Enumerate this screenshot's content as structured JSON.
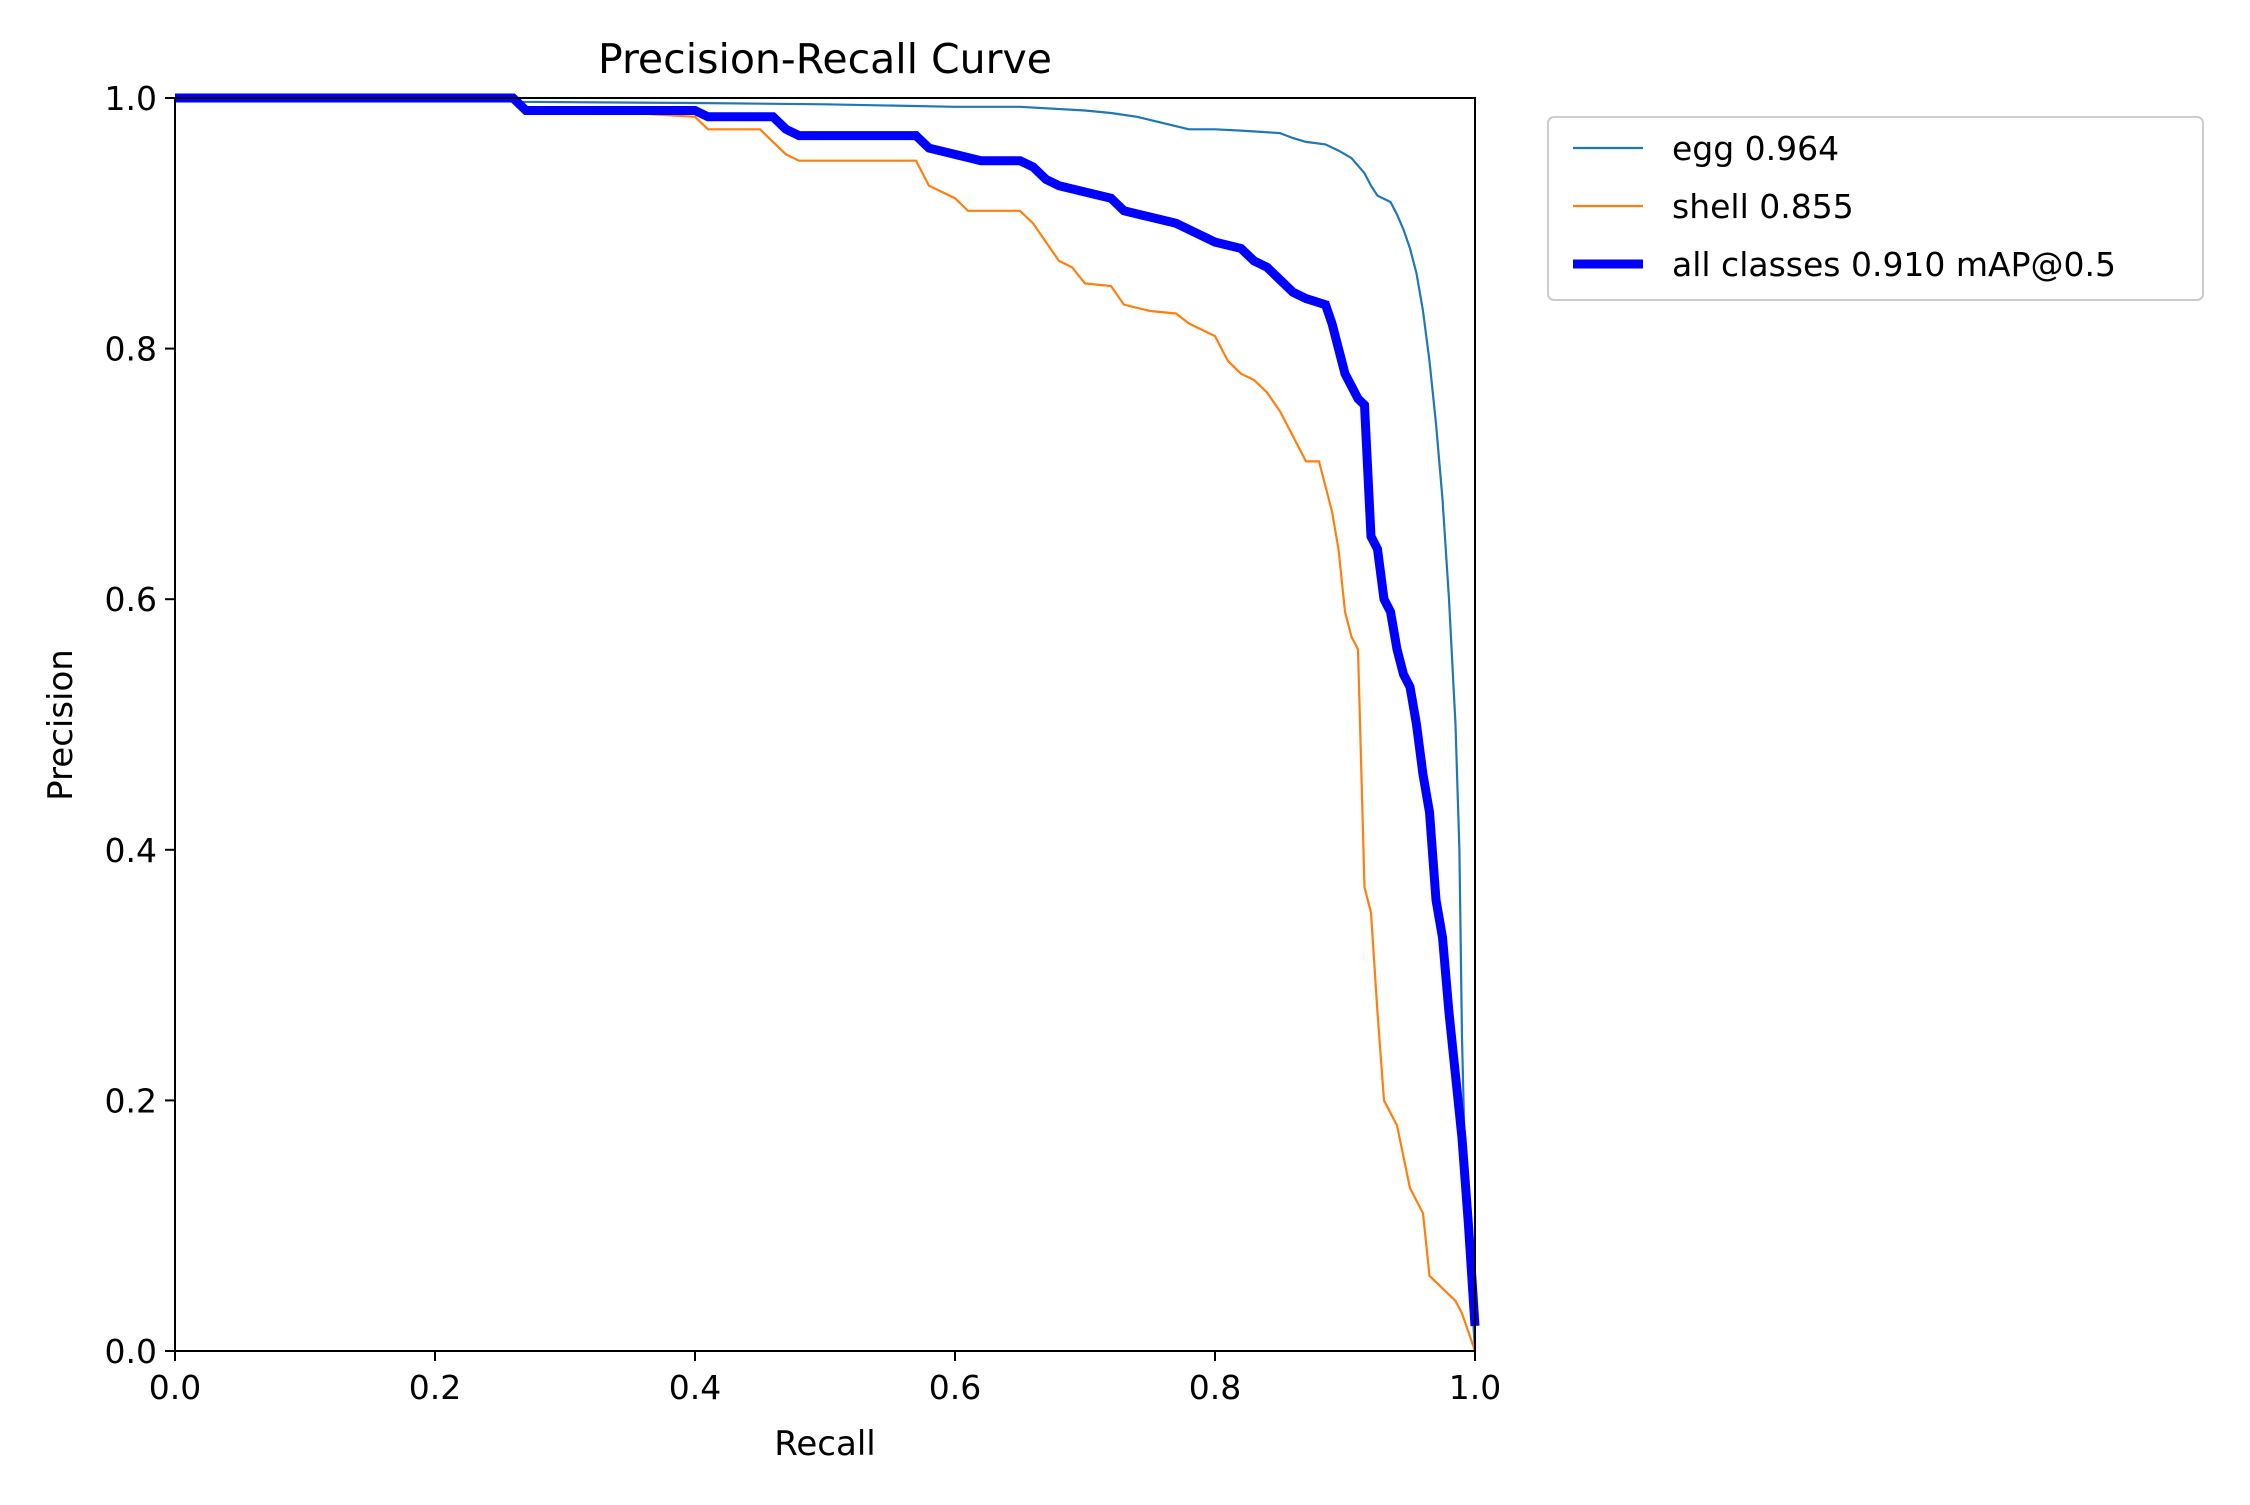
{
  "chart_data": {
    "type": "line",
    "title": "Precision-Recall Curve",
    "xlabel": "Recall",
    "ylabel": "Precision",
    "xlim": [
      0,
      1
    ],
    "ylim": [
      0,
      1
    ],
    "xticks": [
      "0.0",
      "0.2",
      "0.4",
      "0.6",
      "0.8",
      "1.0"
    ],
    "yticks": [
      "0.0",
      "0.2",
      "0.4",
      "0.6",
      "0.8",
      "1.0"
    ],
    "grid": false,
    "legend_position": "outside-right-top",
    "series": [
      {
        "name": "egg 0.964",
        "color": "#1f77b4",
        "points": [
          [
            0,
            1.0
          ],
          [
            0.26,
            1.0
          ],
          [
            0.265,
            0.997
          ],
          [
            0.4,
            0.996
          ],
          [
            0.5,
            0.995
          ],
          [
            0.6,
            0.993
          ],
          [
            0.65,
            0.993
          ],
          [
            0.7,
            0.99
          ],
          [
            0.72,
            0.988
          ],
          [
            0.74,
            0.985
          ],
          [
            0.76,
            0.98
          ],
          [
            0.78,
            0.975
          ],
          [
            0.8,
            0.975
          ],
          [
            0.82,
            0.974
          ],
          [
            0.85,
            0.972
          ],
          [
            0.86,
            0.968
          ],
          [
            0.87,
            0.965
          ],
          [
            0.885,
            0.963
          ],
          [
            0.895,
            0.958
          ],
          [
            0.905,
            0.952
          ],
          [
            0.915,
            0.94
          ],
          [
            0.92,
            0.93
          ],
          [
            0.925,
            0.922
          ],
          [
            0.935,
            0.917
          ],
          [
            0.94,
            0.907
          ],
          [
            0.945,
            0.895
          ],
          [
            0.95,
            0.88
          ],
          [
            0.955,
            0.86
          ],
          [
            0.96,
            0.83
          ],
          [
            0.965,
            0.79
          ],
          [
            0.97,
            0.74
          ],
          [
            0.975,
            0.68
          ],
          [
            0.98,
            0.6
          ],
          [
            0.985,
            0.5
          ],
          [
            0.988,
            0.4
          ],
          [
            0.99,
            0.25
          ],
          [
            0.993,
            0.12
          ],
          [
            1.0,
            0.0
          ]
        ]
      },
      {
        "name": "shell 0.855",
        "color": "#ff7f0e",
        "points": [
          [
            0,
            1.0
          ],
          [
            0.265,
            1.0
          ],
          [
            0.27,
            0.988
          ],
          [
            0.35,
            0.988
          ],
          [
            0.4,
            0.985
          ],
          [
            0.41,
            0.975
          ],
          [
            0.45,
            0.975
          ],
          [
            0.46,
            0.965
          ],
          [
            0.47,
            0.955
          ],
          [
            0.48,
            0.95
          ],
          [
            0.57,
            0.95
          ],
          [
            0.58,
            0.93
          ],
          [
            0.6,
            0.92
          ],
          [
            0.61,
            0.91
          ],
          [
            0.65,
            0.91
          ],
          [
            0.66,
            0.9
          ],
          [
            0.67,
            0.885
          ],
          [
            0.68,
            0.87
          ],
          [
            0.69,
            0.865
          ],
          [
            0.7,
            0.852
          ],
          [
            0.72,
            0.85
          ],
          [
            0.73,
            0.835
          ],
          [
            0.75,
            0.83
          ],
          [
            0.77,
            0.828
          ],
          [
            0.78,
            0.82
          ],
          [
            0.8,
            0.81
          ],
          [
            0.81,
            0.79
          ],
          [
            0.82,
            0.78
          ],
          [
            0.83,
            0.775
          ],
          [
            0.84,
            0.765
          ],
          [
            0.85,
            0.75
          ],
          [
            0.86,
            0.73
          ],
          [
            0.87,
            0.71
          ],
          [
            0.88,
            0.71
          ],
          [
            0.89,
            0.67
          ],
          [
            0.895,
            0.64
          ],
          [
            0.9,
            0.59
          ],
          [
            0.905,
            0.57
          ],
          [
            0.91,
            0.56
          ],
          [
            0.915,
            0.37
          ],
          [
            0.92,
            0.35
          ],
          [
            0.925,
            0.27
          ],
          [
            0.93,
            0.2
          ],
          [
            0.94,
            0.18
          ],
          [
            0.95,
            0.13
          ],
          [
            0.96,
            0.11
          ],
          [
            0.965,
            0.06
          ],
          [
            0.975,
            0.05
          ],
          [
            0.985,
            0.04
          ],
          [
            0.99,
            0.03
          ],
          [
            1.0,
            0.0
          ]
        ]
      },
      {
        "name": "all classes 0.910 mAP@0.5",
        "color": "#0000ff",
        "points": [
          [
            0,
            1.0
          ],
          [
            0.26,
            1.0
          ],
          [
            0.27,
            0.99
          ],
          [
            0.35,
            0.99
          ],
          [
            0.4,
            0.99
          ],
          [
            0.41,
            0.985
          ],
          [
            0.46,
            0.985
          ],
          [
            0.47,
            0.975
          ],
          [
            0.48,
            0.97
          ],
          [
            0.57,
            0.97
          ],
          [
            0.58,
            0.96
          ],
          [
            0.6,
            0.955
          ],
          [
            0.62,
            0.95
          ],
          [
            0.65,
            0.95
          ],
          [
            0.66,
            0.945
          ],
          [
            0.67,
            0.935
          ],
          [
            0.68,
            0.93
          ],
          [
            0.7,
            0.925
          ],
          [
            0.72,
            0.92
          ],
          [
            0.73,
            0.91
          ],
          [
            0.75,
            0.905
          ],
          [
            0.77,
            0.9
          ],
          [
            0.78,
            0.895
          ],
          [
            0.8,
            0.885
          ],
          [
            0.82,
            0.88
          ],
          [
            0.83,
            0.87
          ],
          [
            0.84,
            0.865
          ],
          [
            0.85,
            0.855
          ],
          [
            0.86,
            0.845
          ],
          [
            0.87,
            0.84
          ],
          [
            0.885,
            0.835
          ],
          [
            0.89,
            0.82
          ],
          [
            0.895,
            0.8
          ],
          [
            0.9,
            0.78
          ],
          [
            0.905,
            0.77
          ],
          [
            0.91,
            0.76
          ],
          [
            0.915,
            0.755
          ],
          [
            0.92,
            0.65
          ],
          [
            0.925,
            0.64
          ],
          [
            0.93,
            0.6
          ],
          [
            0.935,
            0.59
          ],
          [
            0.94,
            0.56
          ],
          [
            0.945,
            0.54
          ],
          [
            0.95,
            0.53
          ],
          [
            0.955,
            0.5
          ],
          [
            0.96,
            0.46
          ],
          [
            0.965,
            0.43
          ],
          [
            0.97,
            0.36
          ],
          [
            0.975,
            0.33
          ],
          [
            0.98,
            0.27
          ],
          [
            0.985,
            0.22
          ],
          [
            0.99,
            0.17
          ],
          [
            0.995,
            0.1
          ],
          [
            1.0,
            0.02
          ]
        ]
      }
    ]
  }
}
